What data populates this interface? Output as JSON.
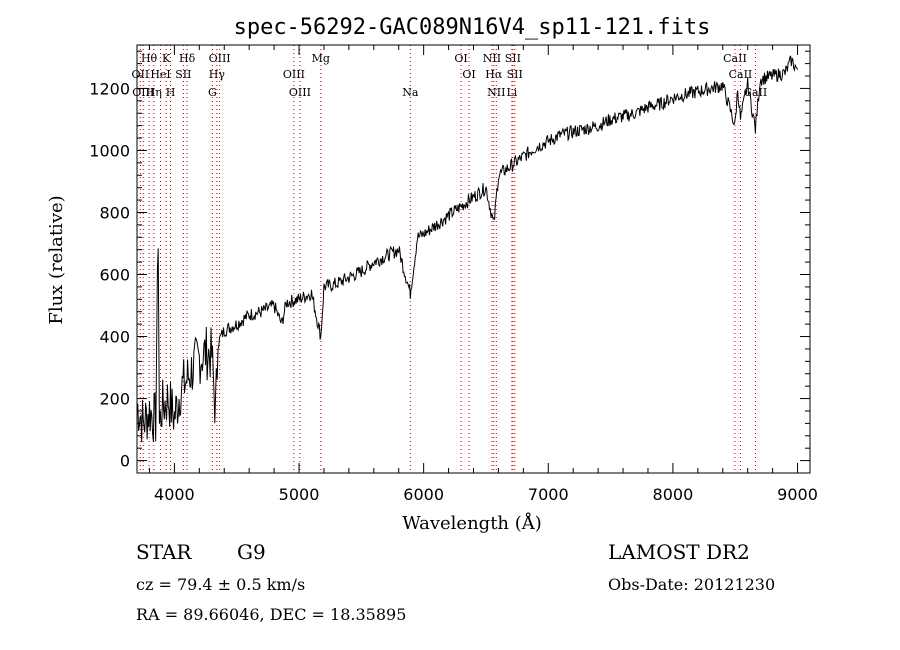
{
  "chart_data": {
    "type": "line",
    "title": "spec-56292-GAC089N16V4_sp11-121.fits",
    "xlabel": "Wavelength (Å)",
    "ylabel": "Flux (relative)",
    "xlim": [
      3700,
      9100
    ],
    "ylim": [
      -40,
      1340
    ],
    "x_ticks": [
      4000,
      5000,
      6000,
      7000,
      8000,
      9000
    ],
    "y_ticks": [
      0,
      200,
      400,
      600,
      800,
      1000,
      1200
    ],
    "series": [
      {
        "x": [
          3700,
          3750,
          3800,
          3850,
          3870,
          3880,
          3900,
          3950,
          4000,
          4050,
          4100,
          4150,
          4200,
          4250,
          4300,
          4330,
          4350,
          4400,
          4500,
          4600,
          4700,
          4800,
          4860,
          4900,
          5000,
          5100,
          5175,
          5200,
          5300,
          5400,
          5500,
          5600,
          5700,
          5800,
          5893,
          5950,
          6000,
          6100,
          6200,
          6300,
          6400,
          6500,
          6563,
          6600,
          6700,
          6800,
          6900,
          7000,
          7100,
          7200,
          7300,
          7400,
          7500,
          7600,
          7700,
          7800,
          7900,
          8000,
          8100,
          8200,
          8300,
          8400,
          8498,
          8520,
          8542,
          8600,
          8662,
          8700,
          8800,
          8900,
          8950,
          9000
        ],
        "y": [
          180,
          120,
          160,
          130,
          740,
          110,
          170,
          200,
          140,
          230,
          260,
          300,
          330,
          350,
          340,
          150,
          380,
          420,
          440,
          470,
          480,
          500,
          440,
          510,
          520,
          540,
          400,
          560,
          570,
          590,
          610,
          640,
          660,
          680,
          540,
          720,
          730,
          760,
          790,
          820,
          850,
          880,
          760,
          920,
          950,
          980,
          1010,
          1030,
          1050,
          1060,
          1070,
          1080,
          1100,
          1110,
          1120,
          1140,
          1150,
          1170,
          1180,
          1190,
          1200,
          1210,
          1080,
          1200,
          1100,
          1215,
          1070,
          1230,
          1240,
          1250,
          1290,
          1260
        ]
      }
    ],
    "lines": [
      {
        "label": "Hθ",
        "x": 3797,
        "row": 0
      },
      {
        "label": "K",
        "x": 3934,
        "row": 0
      },
      {
        "label": "Hδ",
        "x": 4102,
        "row": 0
      },
      {
        "label": "OII",
        "x": 3727,
        "row": 1
      },
      {
        "label": "HeI",
        "x": 3889,
        "row": 1
      },
      {
        "label": "SII",
        "x": 4072,
        "row": 1
      },
      {
        "label": "OIII",
        "x": 3750,
        "row": 2
      },
      {
        "label": "Hη",
        "x": 3835,
        "row": 2
      },
      {
        "label": "H",
        "x": 3969,
        "row": 2
      },
      {
        "label": "OIII",
        "x": 4363,
        "row": 0
      },
      {
        "label": "Hγ",
        "x": 4341,
        "row": 1
      },
      {
        "label": "G",
        "x": 4305,
        "row": 2
      },
      {
        "label": "OIII",
        "x": 4959,
        "row": 1
      },
      {
        "label": "OIII",
        "x": 5007,
        "row": 2
      },
      {
        "label": "Mg",
        "x": 5175,
        "row": 0
      },
      {
        "label": "Na",
        "x": 5893,
        "row": 2
      },
      {
        "label": "OI",
        "x": 6300,
        "row": 0
      },
      {
        "label": "OI",
        "x": 6364,
        "row": 1
      },
      {
        "label": "NII",
        "x": 6548,
        "row": 0
      },
      {
        "label": "Hα",
        "x": 6563,
        "row": 1
      },
      {
        "label": "NII",
        "x": 6583,
        "row": 2
      },
      {
        "label": "SII",
        "x": 6716,
        "row": 0
      },
      {
        "label": "SII",
        "x": 6731,
        "row": 1
      },
      {
        "label": "Li",
        "x": 6708,
        "row": 2
      },
      {
        "label": "CaII",
        "x": 8498,
        "row": 0
      },
      {
        "label": "CaII",
        "x": 8542,
        "row": 1
      },
      {
        "label": "CaII",
        "x": 8662,
        "row": 2
      }
    ]
  },
  "info": {
    "object_type": "STAR",
    "subclass": "G9",
    "survey": "LAMOST DR2",
    "cz": "cz = 79.4 ± 0.5 km/s",
    "obs_date": "Obs-Date: 20121230",
    "coords": "RA =  89.66046, DEC =  18.35895"
  }
}
